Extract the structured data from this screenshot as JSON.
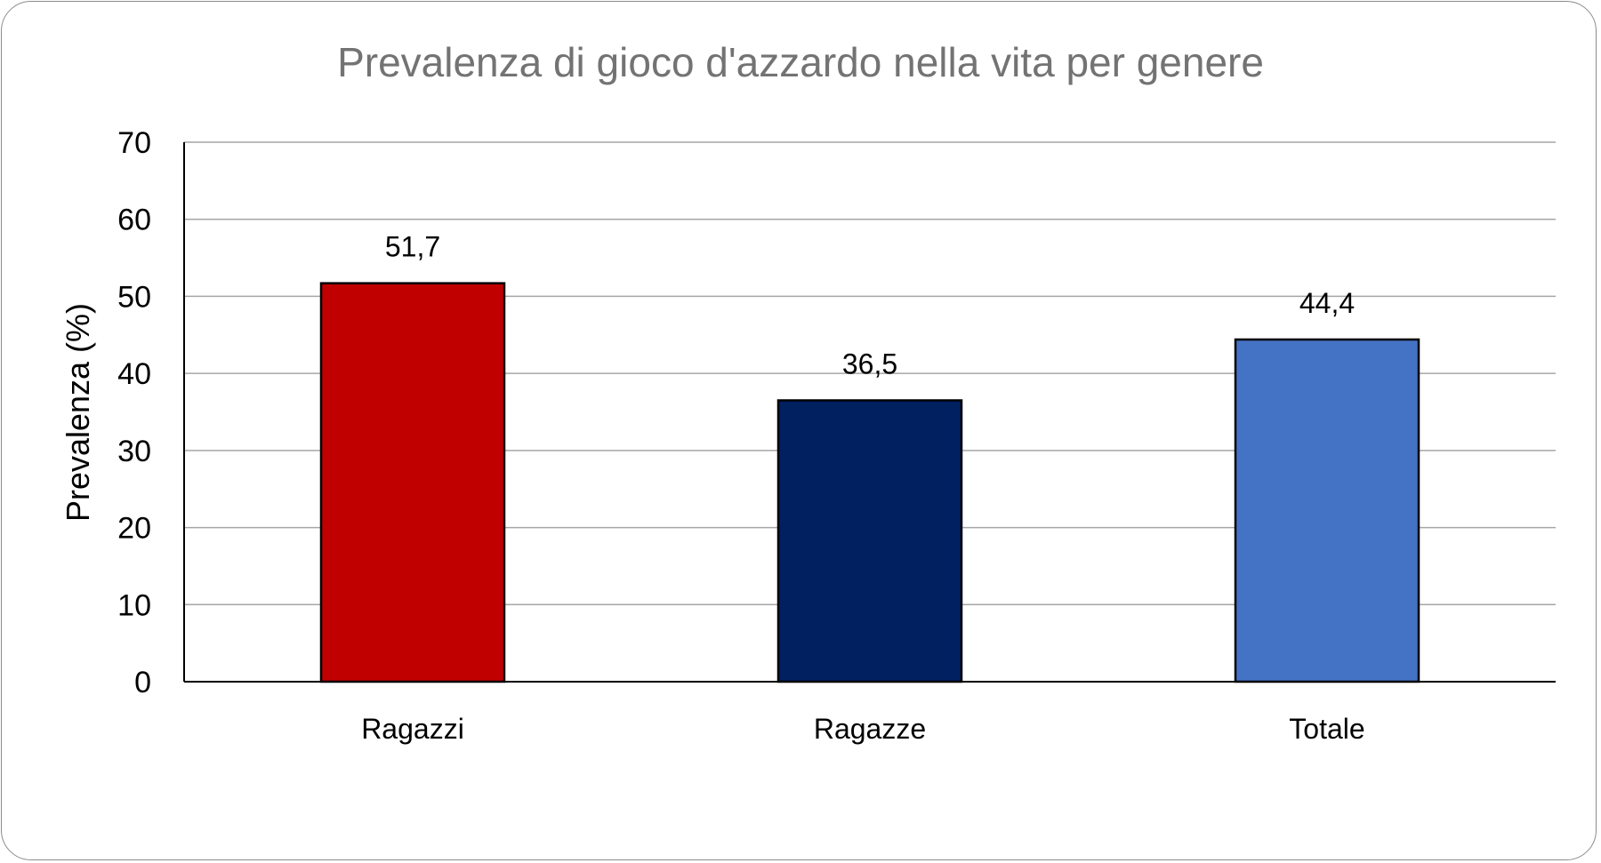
{
  "chart_data": {
    "type": "bar",
    "title": "Prevalenza di gioco d'azzardo nella vita per genere",
    "ylabel": "Prevalenza (%)",
    "xlabel": "",
    "ylim": [
      0,
      70
    ],
    "yticks": [
      0,
      10,
      20,
      30,
      40,
      50,
      60,
      70
    ],
    "ytick_labels": [
      "0",
      "10",
      "20",
      "30",
      "40",
      "50",
      "60",
      "70"
    ],
    "categories": [
      "Ragazzi",
      "Ragazze",
      "Totale"
    ],
    "values": [
      51.7,
      36.5,
      44.4
    ],
    "value_labels": [
      "51,7",
      "36,5",
      "44,4"
    ],
    "colors": [
      "#c00000",
      "#002060",
      "#4472c4"
    ],
    "grid": true,
    "legend": "none"
  }
}
